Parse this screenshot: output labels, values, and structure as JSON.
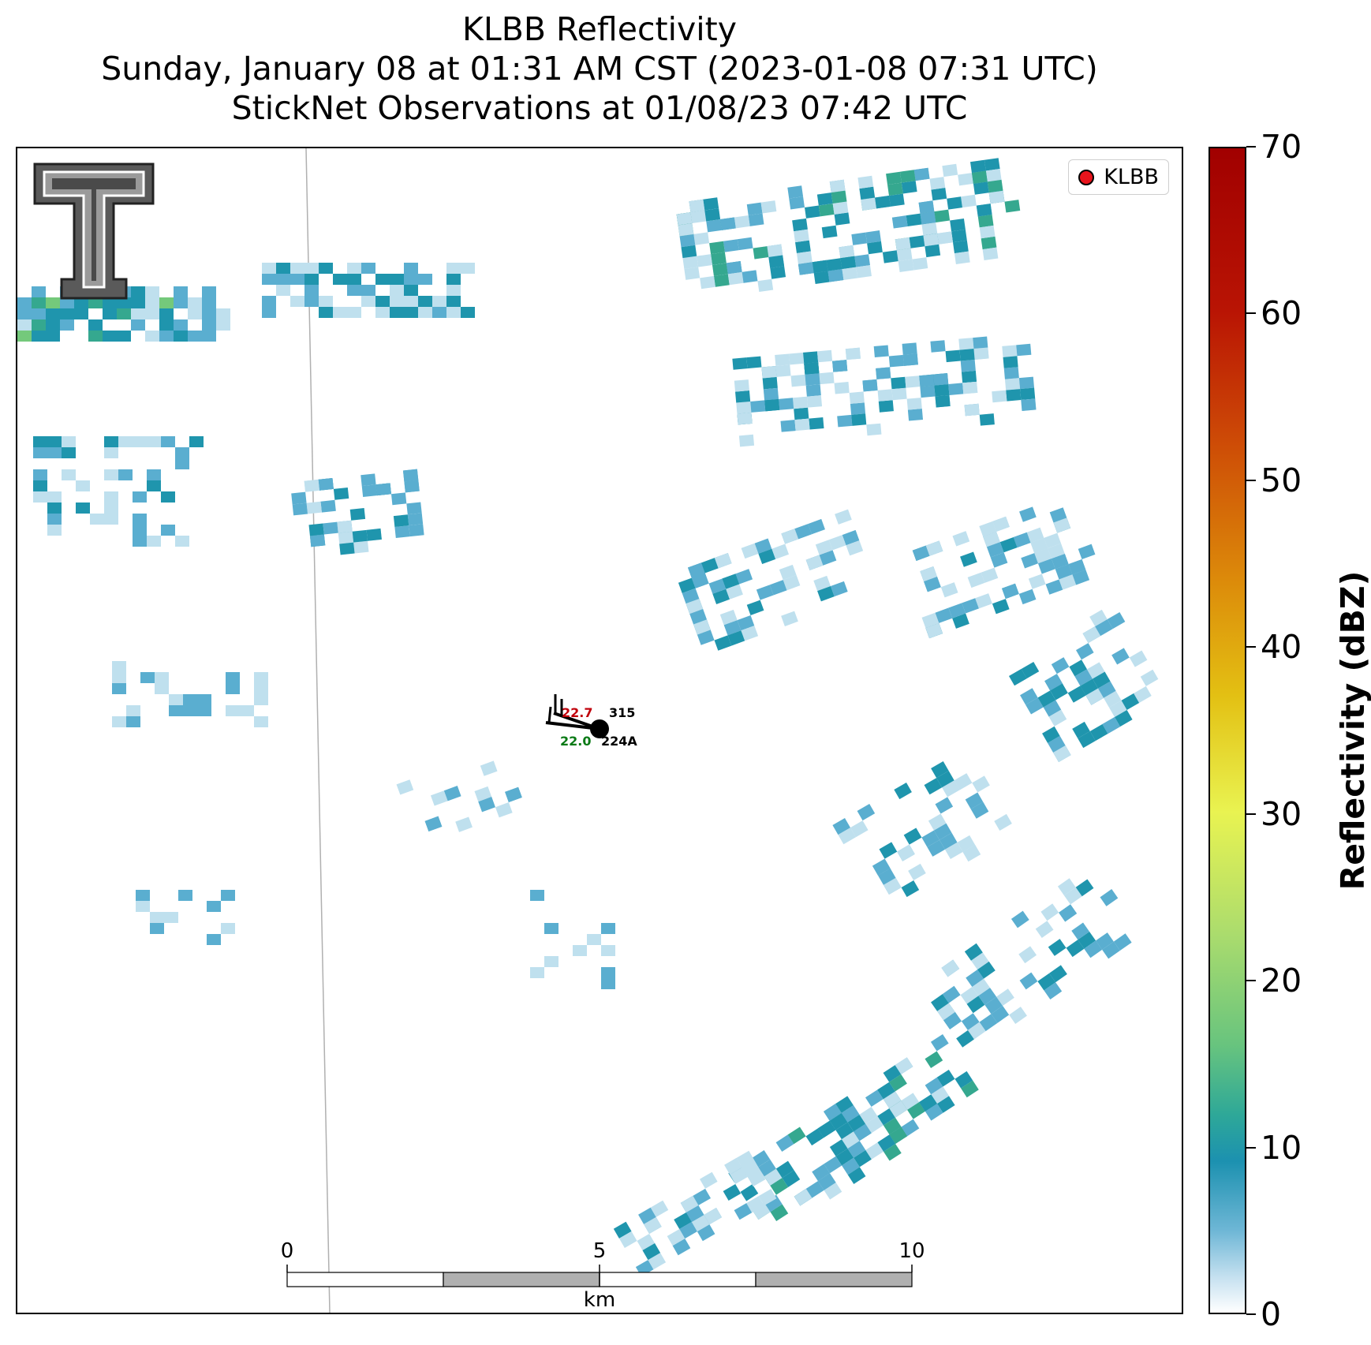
{
  "title": {
    "line1": "KLBB Reflectivity",
    "line2": "Sunday, January 08 at 01:31 AM CST (2023-01-08 07:31 UTC)",
    "line3": "StickNet Observations at 01/08/23 07:42 UTC"
  },
  "legend": {
    "label": "KLBB",
    "marker_color": "#e8141c"
  },
  "colorbar": {
    "title": "Reflectivity (dBZ)",
    "ticks": [
      "0",
      "10",
      "20",
      "30",
      "40",
      "50",
      "60",
      "70"
    ],
    "range": [
      0,
      70
    ]
  },
  "scalebar": {
    "ticks": [
      "0",
      "5",
      "10"
    ],
    "unit": "km"
  },
  "stations": {
    "north": {
      "id": "315",
      "temp": "22.7",
      "temp_color": "#c0000b"
    },
    "south": {
      "id": "224A",
      "dew": "22.0",
      "dew_color": "#0a7a16"
    }
  },
  "logo": {
    "name": "Texas Tech Double T"
  },
  "colors": {
    "light_blue": "#bfe0ee",
    "blue": "#5aaed0",
    "teal": "#1f95ad",
    "green_teal": "#35a88f",
    "green": "#74c97b",
    "yellow_green": "#c9ec63"
  }
}
